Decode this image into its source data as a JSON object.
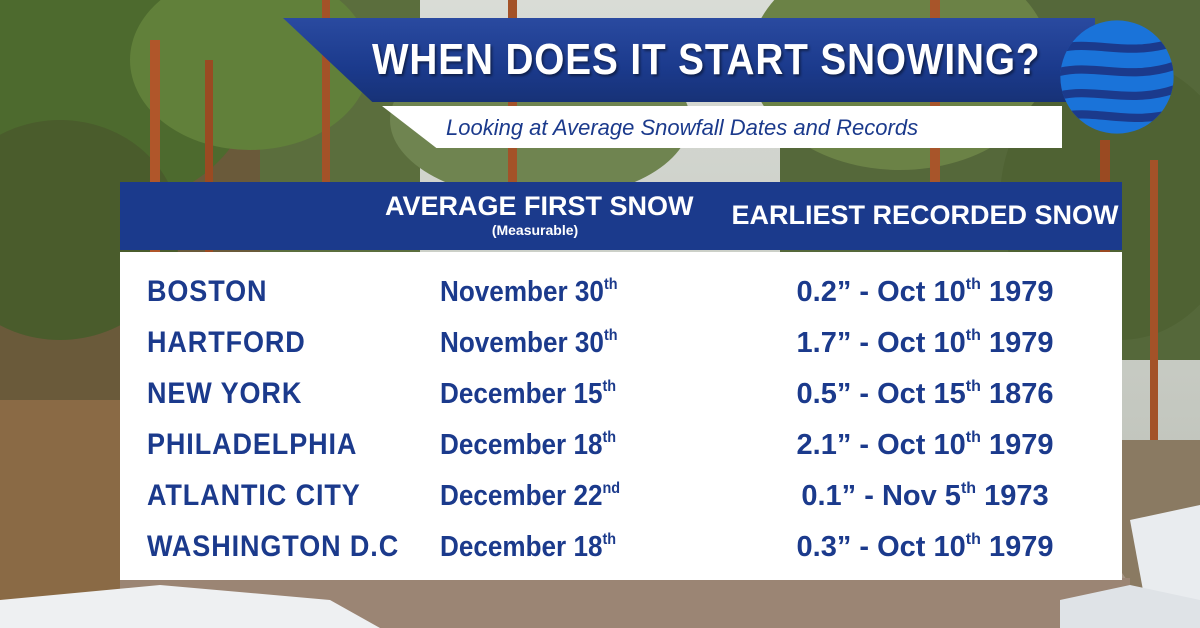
{
  "title": "WHEN DOES IT START SNOWING?",
  "subtitle": "Looking at Average Snowfall Dates and Records",
  "logo_icon": "globe-wave-icon",
  "colors": {
    "primary_blue": "#1b3a8c",
    "white": "#ffffff",
    "logo_blue": "#1a73d9"
  },
  "table": {
    "headers": {
      "average_first_snow": "AVERAGE FIRST SNOW",
      "average_first_snow_note": "(Measurable)",
      "earliest_recorded_snow": "EARLIEST RECORDED SNOW"
    },
    "rows": [
      {
        "city": "BOSTON",
        "avg_date": "November 30",
        "avg_suffix": "th",
        "amount": "0.2”",
        "rec_date": "Oct 10",
        "rec_suffix": "th",
        "rec_year": "1979"
      },
      {
        "city": "HARTFORD",
        "avg_date": "November 30",
        "avg_suffix": "th",
        "amount": "1.7”",
        "rec_date": "Oct 10",
        "rec_suffix": "th",
        "rec_year": "1979"
      },
      {
        "city": "NEW YORK",
        "avg_date": "December 15",
        "avg_suffix": "th",
        "amount": "0.5”",
        "rec_date": "Oct 15",
        "rec_suffix": "th",
        "rec_year": "1876"
      },
      {
        "city": "PHILADELPHIA",
        "avg_date": "December 18",
        "avg_suffix": "th",
        "amount": "2.1”",
        "rec_date": "Oct 10",
        "rec_suffix": "th",
        "rec_year": "1979"
      },
      {
        "city": "ATLANTIC CITY",
        "avg_date": "December 22",
        "avg_suffix": "nd",
        "amount": "0.1”",
        "rec_date": "Nov 5",
        "rec_suffix": "th",
        "rec_year": "1973"
      },
      {
        "city": "WASHINGTON D.C",
        "avg_date": "December 18",
        "avg_suffix": "th",
        "amount": "0.3”",
        "rec_date": "Oct 10",
        "rec_suffix": "th",
        "rec_year": "1979"
      }
    ]
  }
}
